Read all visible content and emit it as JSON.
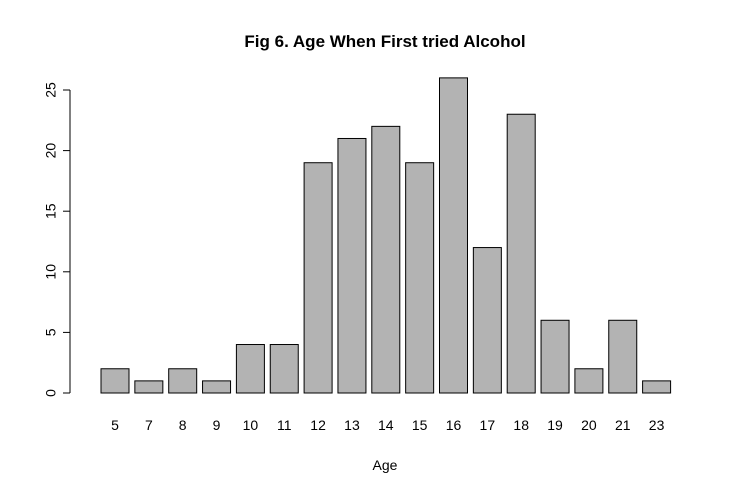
{
  "chart_data": {
    "type": "bar",
    "title": "Fig 6. Age When First tried Alcohol",
    "xlabel": "Age",
    "ylabel": "",
    "categories": [
      "5",
      "7",
      "8",
      "9",
      "10",
      "11",
      "12",
      "13",
      "14",
      "15",
      "16",
      "17",
      "18",
      "19",
      "20",
      "21",
      "23"
    ],
    "values": [
      2,
      1,
      2,
      1,
      4,
      4,
      19,
      21,
      22,
      19,
      26,
      12,
      23,
      6,
      2,
      6,
      1
    ],
    "ylim": [
      0,
      26
    ],
    "yticks": [
      0,
      5,
      10,
      15,
      20,
      25
    ],
    "grid": false,
    "legend": "none",
    "colors": {
      "bar_fill": "#b3b3b3",
      "bar_stroke": "#000000",
      "axis": "#000000"
    }
  }
}
